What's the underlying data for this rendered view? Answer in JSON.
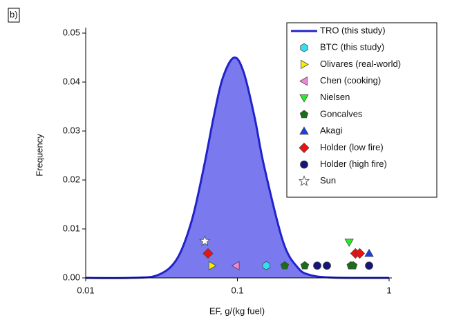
{
  "chart_data": {
    "type": "scatter",
    "panel_label": "b)",
    "x_label": "EF, g/(kg fuel)",
    "y_label": "Frequency",
    "log_x": true,
    "xlim": [
      0.01,
      1
    ],
    "xticks": [
      0.01,
      0.1,
      1
    ],
    "ylim": [
      0,
      0.05
    ],
    "yticks": [
      {
        "value": 0,
        "label": "0.00"
      },
      0.01,
      0.02,
      0.03,
      0.04,
      0.05
    ],
    "legend": "top-right",
    "series": [
      {
        "name": "TRO (this study)",
        "style": "area",
        "color": "#2222cc",
        "fill": "#7a7aee",
        "x": [
          0.01,
          0.02,
          0.03,
          0.04,
          0.05,
          0.06,
          0.07,
          0.08,
          0.095,
          0.11,
          0.13,
          0.15,
          0.2,
          0.25,
          0.3,
          0.4,
          0.6,
          1
        ],
        "values": [
          0,
          2e-05,
          0.0006,
          0.0039,
          0.0117,
          0.0225,
          0.0331,
          0.0408,
          0.045,
          0.042,
          0.0327,
          0.0228,
          0.0074,
          0.0021,
          0.0006,
          0.0001,
          0,
          0
        ]
      },
      {
        "name": "BTC (this study)",
        "marker": "hexagon",
        "color": "#33e0f0",
        "x": [
          0.155
        ],
        "values": [
          0.0025
        ]
      },
      {
        "name": "Olivares (real-world)",
        "marker": "triangle-right",
        "color": "#f0f000",
        "x": [
          0.068
        ],
        "values": [
          0.0025
        ]
      },
      {
        "name": "Chen (cooking)",
        "marker": "triangle-left",
        "color": "#ee88dd",
        "x": [
          0.098
        ],
        "values": [
          0.0025
        ]
      },
      {
        "name": "Nielsen",
        "marker": "triangle-down",
        "color": "#22ee22",
        "x": [
          0.545
        ],
        "values": [
          0.0073
        ]
      },
      {
        "name": "Goncalves",
        "marker": "pentagon",
        "color": "#1a6e1a",
        "x": [
          0.205,
          0.278,
          0.56,
          0.58
        ],
        "values": [
          0.0025,
          0.0025,
          0.0025,
          0.0025
        ]
      },
      {
        "name": "Akagi",
        "marker": "triangle-up",
        "color": "#1a3ee8",
        "x": [
          0.738
        ],
        "values": [
          0.005
        ]
      },
      {
        "name": "Holder (low fire)",
        "marker": "diamond",
        "color": "#ee1111",
        "x": [
          0.064,
          0.6,
          0.64
        ],
        "values": [
          0.005,
          0.005,
          0.005
        ]
      },
      {
        "name": "Holder (high fire)",
        "marker": "circle",
        "color": "#15157a",
        "x": [
          0.336,
          0.389,
          0.738
        ],
        "values": [
          0.0025,
          0.0025,
          0.0025
        ]
      },
      {
        "name": "Sun",
        "marker": "star",
        "color": "#ffffff",
        "x": [
          0.061
        ],
        "values": [
          0.0075
        ]
      }
    ]
  }
}
